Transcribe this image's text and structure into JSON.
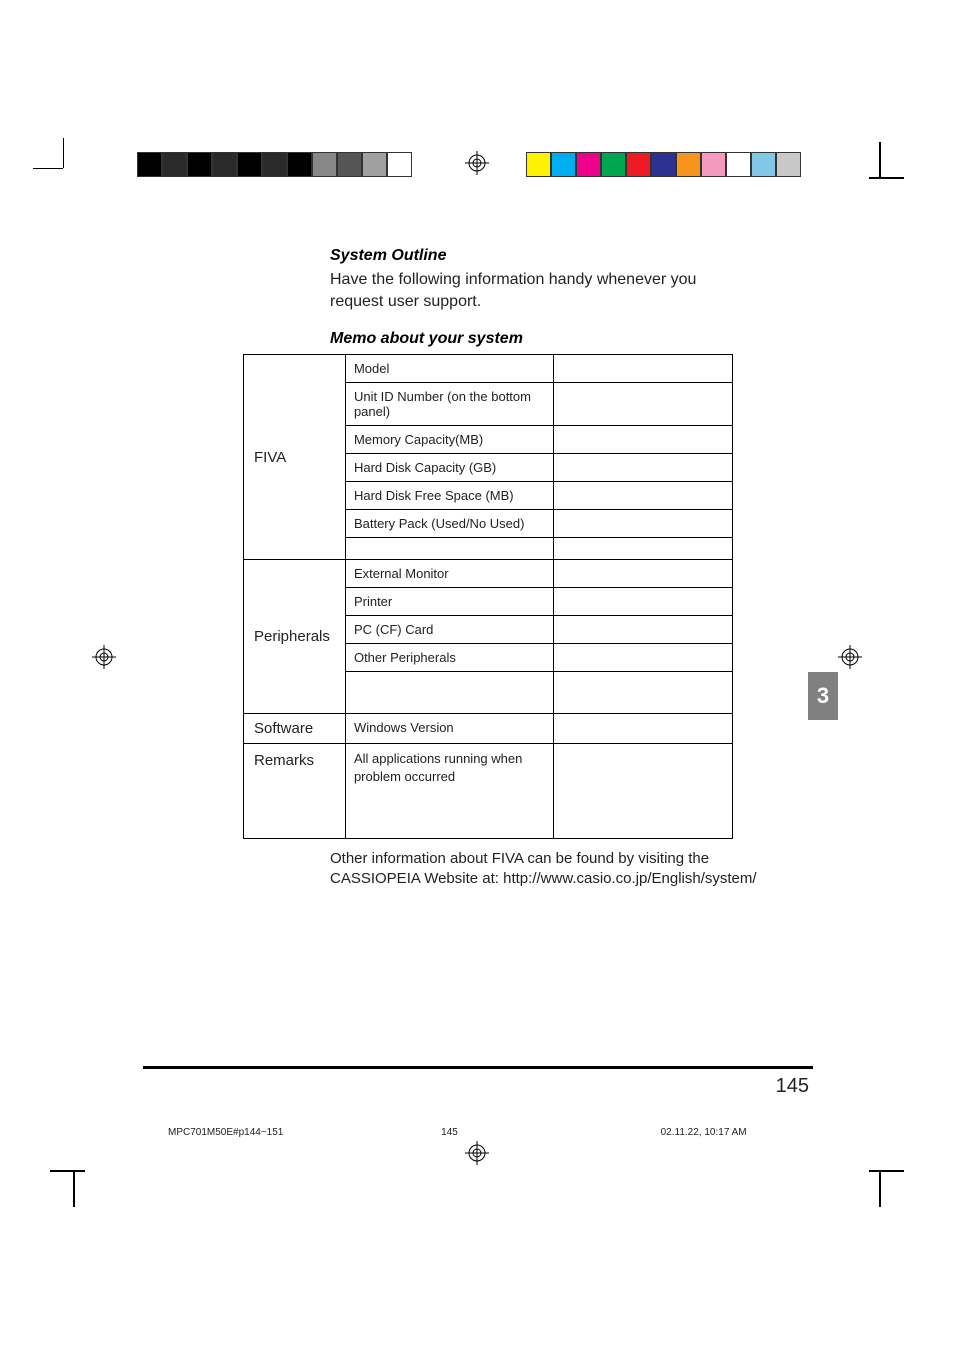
{
  "headings": {
    "system_outline": "System Outline",
    "intro": "Have the following information handy whenever you request user support.",
    "memo_title": "Memo about your system"
  },
  "table": {
    "sections": [
      {
        "category": "FIVA",
        "rows": [
          "Model",
          "Unit ID Number (on the bottom panel)",
          "Memory Capacity(MB)",
          "Hard Disk Capacity (GB)",
          "Hard Disk Free Space (MB)",
          "Battery Pack (Used/No Used)",
          ""
        ]
      },
      {
        "category": "Peripherals",
        "rows": [
          "External Monitor",
          "Printer",
          "PC (CF) Card",
          "Other Peripherals"
        ]
      },
      {
        "category": "Software",
        "rows": [
          "Windows Version"
        ]
      },
      {
        "category": "Remarks",
        "rows": [
          "All applications running when problem occurred"
        ]
      }
    ]
  },
  "footer_text": "Other information about FIVA can be found by visiting the CASSIOPEIA Website at: http://www.casio.co.jp/English/system/",
  "page_number": "145",
  "section_tab": "3",
  "print_meta": {
    "filename": "MPC701M50E#p144~151",
    "page": "145",
    "timestamp": "02.11.22, 10:17 AM"
  },
  "color_bars": {
    "dark": [
      "#000000",
      "#2a2a2a",
      "#000000",
      "#2a2a2a",
      "#000000",
      "#2a2a2a",
      "#000000",
      "#888888",
      "#555555",
      "#a0a0a0",
      "#ffffff"
    ],
    "light": [
      "#fff200",
      "#00aeef",
      "#ec008c",
      "#00a651",
      "#ed1c24",
      "#2e3192",
      "#f7941e",
      "#f49ac1",
      "#ffffff",
      "#82c8e6",
      "#c8c8c8"
    ]
  }
}
